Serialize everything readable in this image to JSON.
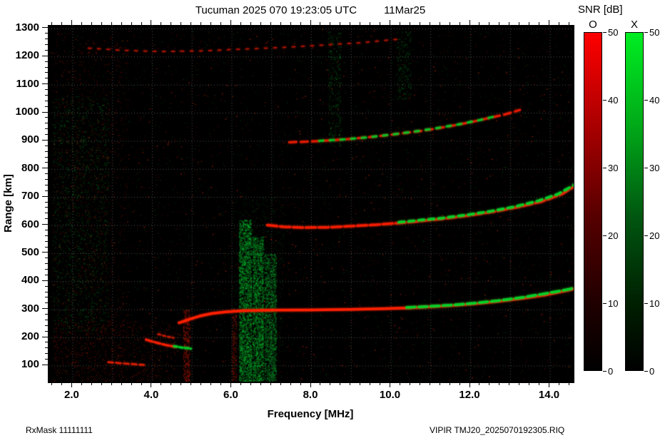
{
  "header": {
    "title": "Tucuman 2025 070 19:23:05 UTC",
    "date": "11Mar25"
  },
  "footer": {
    "left": "RxMask 11111111",
    "right": "VIPIR  TMJ20_2025070192305.RIQ"
  },
  "colorbar": {
    "title": "SNR [dB]",
    "o_label": "O",
    "x_label": "X",
    "min": 0,
    "max": 50,
    "ticks": [
      0,
      10,
      20,
      30,
      40,
      50
    ],
    "o_color": "#ff0000",
    "x_color": "#00dd22"
  },
  "chart_data": {
    "type": "heatmap",
    "title": "Tucuman 2025 070 19:23:05 UTC 11Mar25",
    "xlabel": "Frequency [MHz]",
    "ylabel": "Range [km]",
    "xlim": [
      1.4,
      14.6
    ],
    "ylim": [
      40,
      1310
    ],
    "xticks": [
      2,
      4,
      6,
      8,
      10,
      12,
      14
    ],
    "xtick_labels": [
      "2.0",
      "4.0",
      "6.0",
      "8.0",
      "10.0",
      "12.0",
      "14.0"
    ],
    "yticks": [
      100,
      200,
      300,
      400,
      500,
      600,
      700,
      800,
      900,
      1000,
      1100,
      1200,
      1300
    ],
    "grid_x": [
      2,
      3,
      4,
      5,
      6,
      7,
      8,
      9,
      10,
      11,
      12,
      13,
      14
    ],
    "grid_y": [
      100,
      200,
      300,
      400,
      500,
      600,
      700,
      800,
      900,
      1000,
      1100,
      1200,
      1300
    ],
    "grid_on": true,
    "background": "#000000",
    "o_color": "#ff2000",
    "x_color": "#00d42a",
    "traces": [
      {
        "name": "Es-layer-O",
        "mode": "O",
        "color": "#e82000",
        "width": 2.5,
        "dash": [
          7,
          4
        ],
        "a": 0.9,
        "points": [
          [
            2.9,
            112
          ],
          [
            3.3,
            107
          ],
          [
            3.8,
            102
          ]
        ]
      },
      {
        "name": "E-cusp-O",
        "mode": "O",
        "color": "#e82000",
        "width": 2,
        "dash": [
          4,
          3
        ],
        "a": 0.85,
        "points": [
          [
            4.15,
            212
          ],
          [
            4.35,
            204
          ],
          [
            4.55,
            198
          ]
        ]
      },
      {
        "name": "lower-E-O",
        "mode": "O",
        "color": "#ff2000",
        "width": 3,
        "dash": [
          9,
          3
        ],
        "a": 0.95,
        "points": [
          [
            3.85,
            192
          ],
          [
            4.1,
            182
          ],
          [
            4.35,
            173
          ],
          [
            4.6,
            166
          ]
        ]
      },
      {
        "name": "lower-E-X",
        "mode": "X",
        "color": "#00d42a",
        "width": 3,
        "dash": [
          5,
          3
        ],
        "a": 0.9,
        "points": [
          [
            4.55,
            169
          ],
          [
            4.75,
            164
          ],
          [
            4.98,
            160
          ]
        ]
      },
      {
        "name": "F-1hop-O",
        "mode": "O",
        "color": "#ff2000",
        "width": 3.5,
        "dash": [],
        "a": 1,
        "points": [
          [
            4.68,
            252
          ],
          [
            4.95,
            265
          ],
          [
            5.2,
            276
          ],
          [
            5.5,
            285
          ],
          [
            5.85,
            291
          ],
          [
            6.3,
            295
          ],
          [
            7.0,
            297
          ],
          [
            8.0,
            298
          ],
          [
            9.0,
            300
          ],
          [
            9.8,
            302
          ],
          [
            10.4,
            305
          ],
          [
            11.0,
            309
          ],
          [
            11.6,
            314
          ],
          [
            12.2,
            321
          ],
          [
            12.8,
            330
          ],
          [
            13.4,
            341
          ],
          [
            13.9,
            352
          ],
          [
            14.4,
            366
          ],
          [
            14.8,
            380
          ],
          [
            15.1,
            395
          ]
        ]
      },
      {
        "name": "F-1hop-X",
        "mode": "X",
        "color": "#00d42a",
        "width": 3.5,
        "dash": [
          12,
          5
        ],
        "a": 0.95,
        "points": [
          [
            10.4,
            307
          ],
          [
            10.9,
            310
          ],
          [
            11.5,
            315
          ],
          [
            12.1,
            322
          ],
          [
            12.7,
            331
          ],
          [
            13.3,
            342
          ],
          [
            13.8,
            354
          ],
          [
            14.2,
            364
          ],
          [
            14.5,
            372
          ],
          [
            14.9,
            388
          ],
          [
            15.1,
            398
          ]
        ]
      },
      {
        "name": "F-2hop-O",
        "mode": "O",
        "color": "#f51e00",
        "width": 3.5,
        "dash": [
          14,
          4
        ],
        "a": 0.95,
        "points": [
          [
            6.9,
            600
          ],
          [
            7.3,
            594
          ],
          [
            7.8,
            591
          ],
          [
            8.4,
            592
          ],
          [
            9.0,
            596
          ],
          [
            9.6,
            601
          ],
          [
            10.2,
            607
          ],
          [
            10.8,
            615
          ],
          [
            11.4,
            624
          ],
          [
            12.0,
            635
          ],
          [
            12.6,
            648
          ],
          [
            13.2,
            664
          ],
          [
            13.8,
            684
          ],
          [
            14.3,
            710
          ],
          [
            14.7,
            745
          ],
          [
            15.0,
            780
          ]
        ]
      },
      {
        "name": "F-2hop-X",
        "mode": "X",
        "color": "#00d42a",
        "width": 3.5,
        "dash": [
          8,
          6
        ],
        "a": 0.9,
        "points": [
          [
            10.2,
            610
          ],
          [
            10.7,
            617
          ],
          [
            11.3,
            625
          ],
          [
            11.9,
            636
          ],
          [
            12.5,
            649
          ],
          [
            13.1,
            665
          ],
          [
            13.7,
            686
          ],
          [
            14.2,
            710
          ],
          [
            14.6,
            742
          ],
          [
            15.0,
            800
          ]
        ]
      },
      {
        "name": "F-3hop-O",
        "mode": "O",
        "color": "#ee1c00",
        "width": 3,
        "dash": [
          10,
          6
        ],
        "a": 0.9,
        "points": [
          [
            7.45,
            895
          ],
          [
            7.9,
            897
          ],
          [
            8.4,
            901
          ],
          [
            9.0,
            907
          ],
          [
            9.6,
            915
          ],
          [
            10.2,
            925
          ],
          [
            10.8,
            936
          ],
          [
            11.4,
            950
          ],
          [
            12.0,
            966
          ],
          [
            12.5,
            982
          ],
          [
            12.9,
            995
          ],
          [
            13.25,
            1010
          ]
        ]
      },
      {
        "name": "F-3hop-X",
        "mode": "X",
        "color": "#00c928",
        "width": 3,
        "dash": [
          6,
          9
        ],
        "a": 0.85,
        "points": [
          [
            8.2,
            900
          ],
          [
            8.8,
            905
          ],
          [
            9.4,
            912
          ],
          [
            10.0,
            922
          ],
          [
            10.6,
            933
          ],
          [
            11.2,
            946
          ],
          [
            11.8,
            961
          ],
          [
            12.3,
            976
          ],
          [
            12.7,
            990
          ]
        ]
      },
      {
        "name": "top-spread-trace-O",
        "mode": "O",
        "color": "#c81800",
        "width": 2,
        "dash": [
          4,
          9
        ],
        "a": 0.75,
        "points": [
          [
            2.4,
            1230
          ],
          [
            3.3,
            1222
          ],
          [
            4.2,
            1218
          ],
          [
            5.2,
            1220
          ],
          [
            6.2,
            1226
          ],
          [
            7.2,
            1232
          ],
          [
            8.2,
            1240
          ],
          [
            9.3,
            1250
          ],
          [
            10.2,
            1262
          ]
        ]
      }
    ],
    "noise": [
      {
        "name": "bg-red",
        "f0": 1.45,
        "f1": 14.6,
        "r0": 45,
        "r1": 1300,
        "n": 2600,
        "color": "#ff2a00",
        "a": 0.22,
        "s": 1.4
      },
      {
        "name": "bg-green",
        "f0": 1.45,
        "f1": 14.6,
        "r0": 45,
        "r1": 1300,
        "n": 1700,
        "color": "#00cc33",
        "a": 0.2,
        "s": 1.4
      },
      {
        "name": "bg-red-bright",
        "f0": 1.45,
        "f1": 14.6,
        "r0": 45,
        "r1": 1300,
        "n": 520,
        "color": "#ff3300",
        "a": 0.5,
        "s": 1.6
      },
      {
        "name": "left-band-green",
        "f0": 1.5,
        "f1": 2.9,
        "r0": 220,
        "r1": 1060,
        "n": 1500,
        "color": "#00b030",
        "a": 0.3,
        "s": 1.5
      },
      {
        "name": "left-band-red",
        "f0": 1.5,
        "f1": 3.4,
        "r0": 120,
        "r1": 1270,
        "n": 1100,
        "color": "#cc2000",
        "a": 0.3,
        "s": 1.5
      },
      {
        "name": "interference-6-3-green",
        "f0": 6.18,
        "f1": 6.5,
        "r0": 45,
        "r1": 620,
        "n": 2400,
        "color": "#00d435",
        "a": 0.4,
        "s": 1.6
      },
      {
        "name": "interference-6-65-green",
        "f0": 6.52,
        "f1": 6.8,
        "r0": 45,
        "r1": 560,
        "n": 1900,
        "color": "#00d435",
        "a": 0.38,
        "s": 1.6
      },
      {
        "name": "interference-6-95-green",
        "f0": 6.82,
        "f1": 7.12,
        "r0": 45,
        "r1": 500,
        "n": 1500,
        "color": "#00c935",
        "a": 0.35,
        "s": 1.6
      },
      {
        "name": "interference-wide-green",
        "f0": 6.0,
        "f1": 7.3,
        "r0": 45,
        "r1": 700,
        "n": 900,
        "color": "#00a030",
        "a": 0.22,
        "s": 1.4
      },
      {
        "name": "column-4-85-red",
        "f0": 4.78,
        "f1": 4.95,
        "r0": 45,
        "r1": 300,
        "n": 500,
        "color": "#e02000",
        "a": 0.4,
        "s": 1.4
      },
      {
        "name": "column-6-05-red",
        "f0": 6.0,
        "f1": 6.12,
        "r0": 45,
        "r1": 280,
        "n": 260,
        "color": "#d02000",
        "a": 0.35,
        "s": 1.4
      },
      {
        "name": "column-8-6-green",
        "f0": 8.42,
        "f1": 8.75,
        "r0": 880,
        "r1": 1290,
        "n": 300,
        "color": "#00c030",
        "a": 0.3,
        "s": 1.5
      },
      {
        "name": "column-10-3-green",
        "f0": 10.15,
        "f1": 10.5,
        "r0": 1050,
        "r1": 1290,
        "n": 220,
        "color": "#00c030",
        "a": 0.28,
        "s": 1.5
      },
      {
        "name": "bottom-left-red",
        "f0": 1.5,
        "f1": 4.6,
        "r0": 45,
        "r1": 260,
        "n": 800,
        "color": "#d42000",
        "a": 0.3,
        "s": 1.5
      }
    ]
  }
}
